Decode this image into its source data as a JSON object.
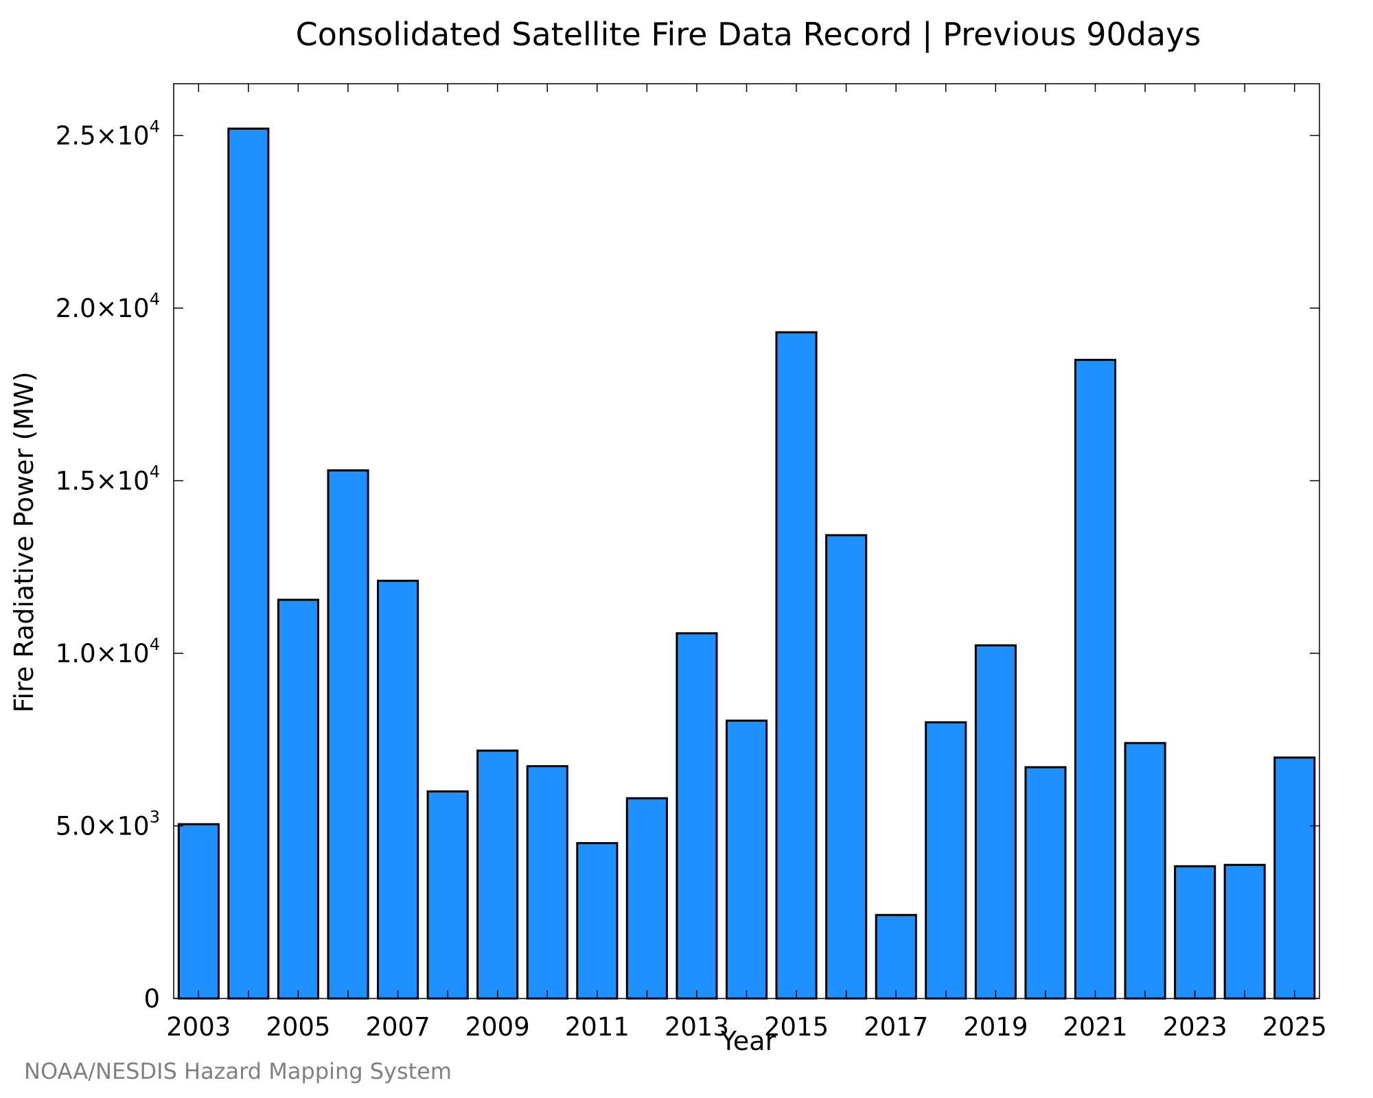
{
  "chart_data": {
    "type": "bar",
    "title": "Consolidated Satellite Fire Data Record | Previous 90days",
    "xlabel": "Year",
    "ylabel": "Fire Radiative Power (MW)",
    "categories": [
      "2003",
      "2004",
      "2005",
      "2006",
      "2007",
      "2008",
      "2009",
      "2010",
      "2011",
      "2012",
      "2013",
      "2014",
      "2015",
      "2016",
      "2017",
      "2018",
      "2019",
      "2020",
      "2021",
      "2022",
      "2023",
      "2024",
      "2025"
    ],
    "values": [
      5050,
      25200,
      11550,
      15300,
      12100,
      6000,
      7180,
      6730,
      4500,
      5800,
      10580,
      8050,
      19300,
      13420,
      2420,
      8000,
      10230,
      6700,
      18500,
      7400,
      3830,
      3870,
      6980
    ],
    "ylim": [
      0,
      26500
    ],
    "xtick_labels": [
      "2003",
      "2005",
      "2007",
      "2009",
      "2011",
      "2013",
      "2015",
      "2017",
      "2019",
      "2021",
      "2023",
      "2025"
    ],
    "ytick_values": [
      0,
      5000,
      10000,
      15000,
      20000,
      25000
    ],
    "ytick_labels": [
      {
        "mantissa": "0",
        "exp": ""
      },
      {
        "mantissa": "5.0×10",
        "exp": "3"
      },
      {
        "mantissa": "1.0×10",
        "exp": "4"
      },
      {
        "mantissa": "1.5×10",
        "exp": "4"
      },
      {
        "mantissa": "2.0×10",
        "exp": "4"
      },
      {
        "mantissa": "2.5×10",
        "exp": "4"
      }
    ],
    "bar_color": "#1e90ff",
    "grid": false,
    "legend": "none"
  },
  "credit": "NOAA/NESDIS Hazard Mapping System"
}
